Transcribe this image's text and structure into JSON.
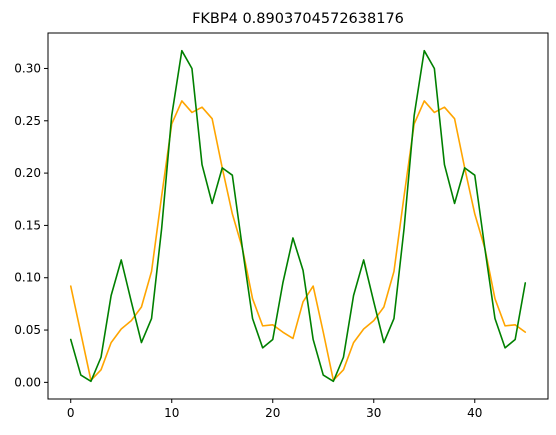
{
  "chart_data": {
    "type": "line",
    "title": "FKBP4 0.8903704572638176",
    "xlabel": "",
    "ylabel": "",
    "xlim": [
      -2.25,
      47.25
    ],
    "ylim": [
      -0.0159,
      0.3339
    ],
    "grid": false,
    "x_ticks": [
      0,
      10,
      20,
      30,
      40
    ],
    "x_tick_labels": [
      "0",
      "10",
      "20",
      "30",
      "40"
    ],
    "y_ticks": [
      0.0,
      0.05,
      0.1,
      0.15,
      0.2,
      0.25,
      0.3
    ],
    "y_tick_labels": [
      "0.00",
      "0.05",
      "0.10",
      "0.15",
      "0.20",
      "0.25",
      "0.30"
    ],
    "x": [
      0,
      1,
      2,
      3,
      4,
      5,
      6,
      7,
      8,
      9,
      10,
      11,
      12,
      13,
      14,
      15,
      16,
      17,
      18,
      19,
      20,
      21,
      22,
      23,
      24,
      25,
      26,
      27,
      28,
      29,
      30,
      31,
      32,
      33,
      34,
      35,
      36,
      37,
      38,
      39,
      40,
      41,
      42,
      43,
      44,
      45
    ],
    "series": [
      {
        "color": "#ffa500",
        "values": [
          0.092,
          0.047,
          0.002,
          0.012,
          0.038,
          0.051,
          0.059,
          0.072,
          0.106,
          0.178,
          0.247,
          0.269,
          0.258,
          0.263,
          0.252,
          0.205,
          0.161,
          0.128,
          0.08,
          0.054,
          0.055,
          0.048,
          0.042,
          0.077,
          0.092,
          0.048,
          0.002,
          0.012,
          0.038,
          0.051,
          0.059,
          0.072,
          0.106,
          0.178,
          0.247,
          0.269,
          0.258,
          0.263,
          0.252,
          0.205,
          0.161,
          0.128,
          0.08,
          0.054,
          0.055,
          0.048
        ]
      },
      {
        "color": "#008000",
        "values": [
          0.041,
          0.007,
          0.001,
          0.024,
          0.083,
          0.117,
          0.077,
          0.038,
          0.061,
          0.147,
          0.255,
          0.317,
          0.3,
          0.208,
          0.171,
          0.205,
          0.198,
          0.128,
          0.061,
          0.033,
          0.041,
          0.095,
          0.138,
          0.107,
          0.041,
          0.007,
          0.001,
          0.024,
          0.083,
          0.117,
          0.077,
          0.038,
          0.061,
          0.147,
          0.255,
          0.317,
          0.3,
          0.208,
          0.171,
          0.205,
          0.198,
          0.128,
          0.061,
          0.033,
          0.041,
          0.095
        ]
      }
    ]
  }
}
